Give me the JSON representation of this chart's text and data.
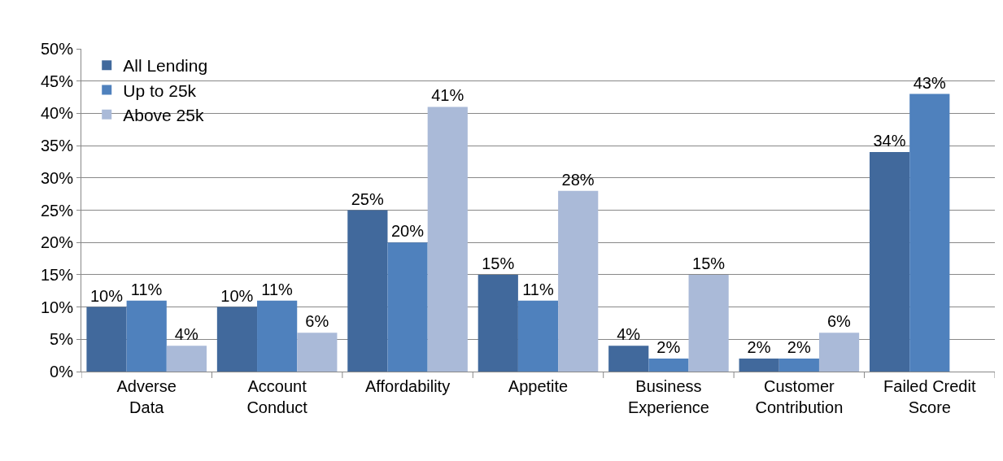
{
  "chart_data": {
    "type": "bar",
    "categories": [
      "Adverse\nData",
      "Account\nConduct",
      "Affordability",
      "Appetite",
      "Business\nExperience",
      "Customer\nContribution",
      "Failed Credit\nScore"
    ],
    "series": [
      {
        "name": "All Lending",
        "color": "#41699c",
        "values": [
          10,
          10,
          25,
          15,
          4,
          2,
          34
        ],
        "value_labels": [
          "10%",
          "10%",
          "25%",
          "15%",
          "4%",
          "2%",
          "34%"
        ]
      },
      {
        "name": "Up to 25k",
        "color": "#4f81bd",
        "values": [
          11,
          11,
          20,
          11,
          2,
          2,
          43
        ],
        "value_labels": [
          "11%",
          "11%",
          "20%",
          "11%",
          "2%",
          "2%",
          "43%"
        ]
      },
      {
        "name": "Above 25k",
        "color": "#aabad8",
        "values": [
          4,
          6,
          41,
          28,
          15,
          6,
          null
        ],
        "value_labels": [
          "4%",
          "6%",
          "41%",
          "28%",
          "15%",
          "6%",
          null
        ]
      }
    ],
    "ylim": [
      0,
      50
    ],
    "yticks": [
      {
        "value": 0,
        "label": "0%"
      },
      {
        "value": 5,
        "label": "5%"
      },
      {
        "value": 10,
        "label": "10%"
      },
      {
        "value": 15,
        "label": "15%"
      },
      {
        "value": 20,
        "label": "20%"
      },
      {
        "value": 25,
        "label": "25%"
      },
      {
        "value": 30,
        "label": "30%"
      },
      {
        "value": 35,
        "label": "35%"
      },
      {
        "value": 40,
        "label": "40%"
      },
      {
        "value": 45,
        "label": "45%"
      },
      {
        "value": 50,
        "label": "50%"
      }
    ],
    "grid": "y",
    "legend": "top left"
  }
}
